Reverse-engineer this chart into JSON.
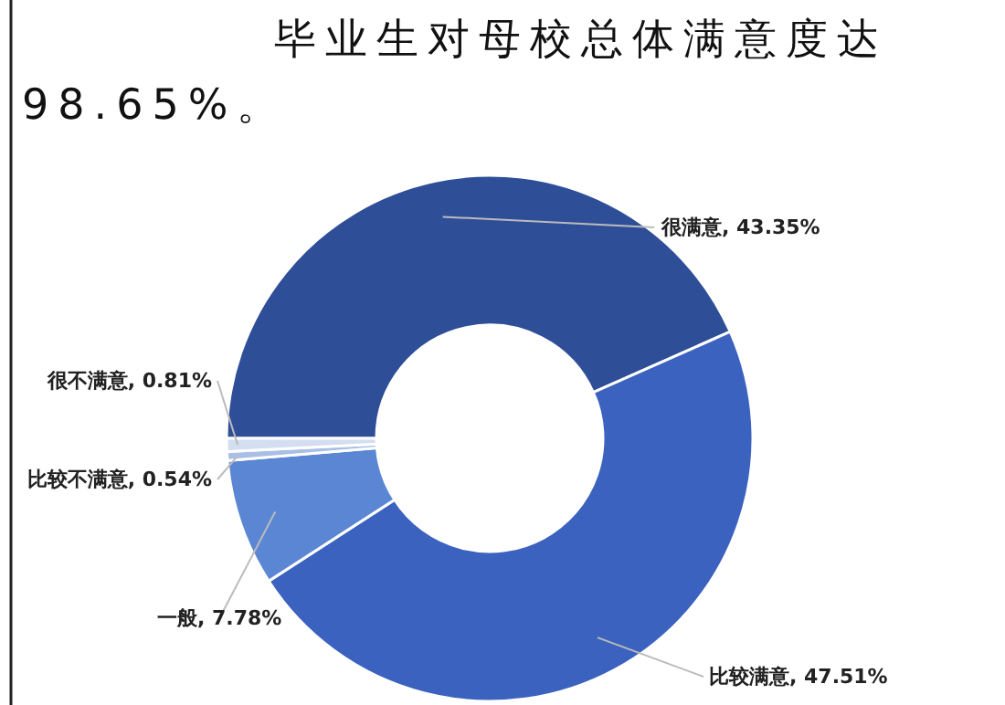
{
  "chart_data": {
    "type": "donut",
    "title": "毕业生对母校总体满意度达98.65%。",
    "categories": [
      "很满意",
      "比较满意",
      "一般",
      "比较不满意",
      "很不满意"
    ],
    "values": [
      43.35,
      47.51,
      7.78,
      0.54,
      0.81
    ],
    "value_labels": [
      "43.35%",
      "47.51%",
      "7.78%",
      "0.54%",
      "0.81%"
    ],
    "colors": [
      "#2f4e98",
      "#3b62be",
      "#5a86d4",
      "#a9bfe6",
      "#d3def1"
    ]
  }
}
